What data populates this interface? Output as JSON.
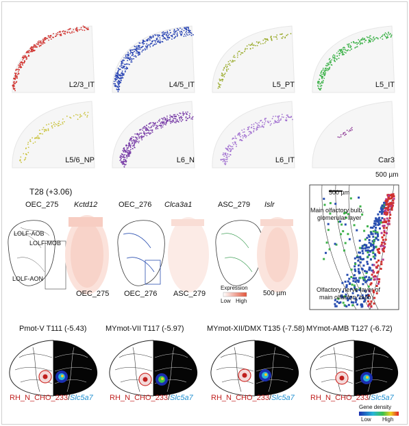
{
  "section_top": {
    "panels": [
      {
        "label": "L2/3_IT",
        "color": "#d0312d",
        "band": "outer"
      },
      {
        "label": "L4/5_IT",
        "color": "#2541b2",
        "band": "outer-thick"
      },
      {
        "label": "L5_PT",
        "color": "#9aab2c",
        "band": "mid-sparse"
      },
      {
        "label": "L5_IT",
        "color": "#3fb24b",
        "band": "mid"
      },
      {
        "label": "L5/6_NP",
        "color": "#c9c23a",
        "band": "inner-sparse"
      },
      {
        "label": "L6_N",
        "color": "#7a3fa8",
        "band": "inner-thick"
      },
      {
        "label": "L6_IT",
        "color": "#a373d1",
        "band": "inner"
      },
      {
        "label": "Car3",
        "color": "#8e3a96",
        "band": "tiny"
      }
    ],
    "scale_label": "500 µm"
  },
  "section_mid": {
    "title": "T28 (+3.06)",
    "headers": [
      {
        "name": "OEC_275",
        "gene": "Kctd12"
      },
      {
        "name": "OEC_276",
        "gene": "Clca3a1"
      },
      {
        "name": "ASC_279",
        "gene": "Islr"
      }
    ],
    "region_labels": [
      "LOLF-AOB",
      "LOLF-MOB",
      "LOLF-AON"
    ],
    "bottom_labels": [
      "OEC_275",
      "OEC_276",
      "ASC_279"
    ],
    "expression_legend": {
      "title": "Expression",
      "low": "Low",
      "high": "High"
    },
    "scale_label": "500 µm",
    "zoom_panel": {
      "scale_label": "500 µm",
      "label_top": "Main olfactory bulb, glomerular layer",
      "label_top_line1": "Main olfactory bulb,",
      "label_top_line2": "glomerular layer",
      "label_bottom_line1": "Olfactory nerve layer of",
      "label_bottom_line2": "main olfactory bulb"
    }
  },
  "section_bottom": {
    "panels": [
      {
        "title": "Pmot-V  T111 (-5.43)",
        "cluster": "RH_N_CHO_233",
        "gene": "Slc5a7"
      },
      {
        "title": "MYmot-VII  T117 (-5.97)",
        "cluster": "RH_N_CHO_233",
        "gene": "Slc5a7"
      },
      {
        "title": "MYmot-XII/DMX  T135 (-7.58)",
        "cluster": "RH_N_CHO_233",
        "gene": "Slc5a7"
      },
      {
        "title": "MYmot-AMB  T127 (-6.72)",
        "cluster": "RH_N_CHO_233",
        "gene": "Slc5a7"
      }
    ],
    "density_legend": {
      "title": "Gene density",
      "low": "Low",
      "high": "High"
    }
  }
}
